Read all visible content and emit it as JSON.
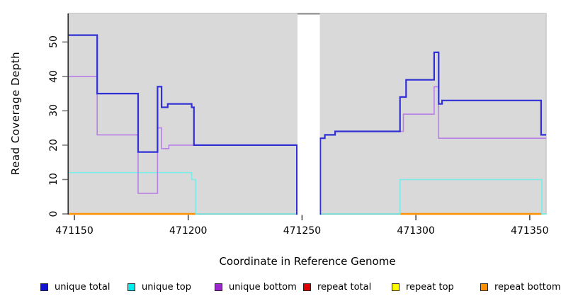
{
  "y_axis": {
    "title": "Read Coverage Depth",
    "ticks": [
      0,
      10,
      20,
      30,
      40,
      50
    ]
  },
  "x_axis": {
    "title": "Coordinate in Reference Genome",
    "ticks": [
      471150,
      471200,
      471250,
      471300,
      471350
    ]
  },
  "legend": {
    "position": "bottom",
    "items": [
      {
        "label": "unique total",
        "color": "#1414cc"
      },
      {
        "label": "unique top",
        "color": "#00eeee"
      },
      {
        "label": "unique bottom",
        "color": "#9929cc"
      },
      {
        "label": "repeat total",
        "color": "#e10000"
      },
      {
        "label": "repeat top",
        "color": "#ffff00"
      },
      {
        "label": "repeat bottom",
        "color": "#ff9000"
      }
    ]
  },
  "chart_data": {
    "type": "line",
    "subtype": "step-after",
    "title": "",
    "xlabel": "Coordinate in Reference Genome",
    "ylabel": "Read Coverage Depth",
    "xlim": [
      471147.5,
      471357.2
    ],
    "ylim": [
      0,
      58.3
    ],
    "grid": false,
    "panel_bg": "#d9d9d9",
    "gap_region": {
      "x1": 471248.0,
      "x2": 471257.8,
      "note": "white no-data gap"
    },
    "series": [
      {
        "name": "unique total",
        "color": "#3030d5",
        "width": 2.2,
        "draw": true,
        "step_points": [
          [
            471147.5,
            52
          ],
          [
            471160,
            35
          ],
          [
            471178,
            18
          ],
          [
            471186.5,
            37
          ],
          [
            471188.3,
            31
          ],
          [
            471191,
            32
          ],
          [
            471201.5,
            31
          ],
          [
            471202.5,
            20
          ],
          [
            471247.7,
            0
          ],
          [
            471258,
            22
          ],
          [
            471260,
            23
          ],
          [
            471264.5,
            24
          ],
          [
            471293,
            34
          ],
          [
            471295.7,
            39
          ],
          [
            471308,
            47
          ],
          [
            471310,
            32
          ],
          [
            471311.5,
            33
          ],
          [
            471355,
            23
          ]
        ]
      },
      {
        "name": "unique top",
        "color": "#7fe9e9",
        "width": 1.6,
        "draw": true,
        "step_points": [
          [
            471147.5,
            12
          ],
          [
            471201.5,
            10
          ],
          [
            471203.3,
            0
          ],
          [
            471293,
            10
          ],
          [
            471355.3,
            0
          ]
        ]
      },
      {
        "name": "unique bottom",
        "color": "#b87fe6",
        "width": 1.6,
        "draw": true,
        "step_points": [
          [
            471147.5,
            40
          ],
          [
            471160,
            23
          ],
          [
            471178,
            6
          ],
          [
            471186.5,
            25
          ],
          [
            471188.3,
            19
          ],
          [
            471191.5,
            20
          ],
          [
            471247.7,
            0
          ],
          [
            471258,
            22
          ],
          [
            471260,
            23
          ],
          [
            471264.5,
            24
          ],
          [
            471294.5,
            29
          ],
          [
            471308,
            37
          ],
          [
            471310,
            22
          ]
        ]
      },
      {
        "name": "repeat total",
        "color": "#e10000",
        "width": 1.6,
        "draw": false,
        "step_points": [
          [
            471147.5,
            0
          ]
        ]
      },
      {
        "name": "repeat top",
        "color": "#ffff00",
        "width": 1.6,
        "draw": false,
        "step_points": [
          [
            471147.5,
            0
          ]
        ]
      },
      {
        "name": "repeat bottom",
        "color": "#ff9000",
        "width": 2.2,
        "draw": false,
        "step_points": [
          [
            471147.5,
            0
          ]
        ]
      }
    ],
    "baseline_segments": [
      {
        "x1": 471147.5,
        "x2": 471203.3,
        "color": "#ff9000",
        "width": 2.4,
        "represents": "repeat bottom (0)"
      },
      {
        "x1": 471203.3,
        "x2": 471247.7,
        "color": "#8fd98f",
        "width": 1.6,
        "represents": "overlap of unique top / repeat top (0)"
      },
      {
        "x1": 471258.0,
        "x2": 471293.0,
        "color": "#8fd98f",
        "width": 1.6,
        "represents": "overlap of unique top / repeat top (0)"
      },
      {
        "x1": 471293.0,
        "x2": 471355.3,
        "color": "#ff9000",
        "width": 2.4,
        "represents": "repeat bottom (0)"
      },
      {
        "x1": 471355.3,
        "x2": 471357.2,
        "color": "#7fe9e9",
        "width": 2.0,
        "represents": "unique top (0)"
      }
    ]
  }
}
